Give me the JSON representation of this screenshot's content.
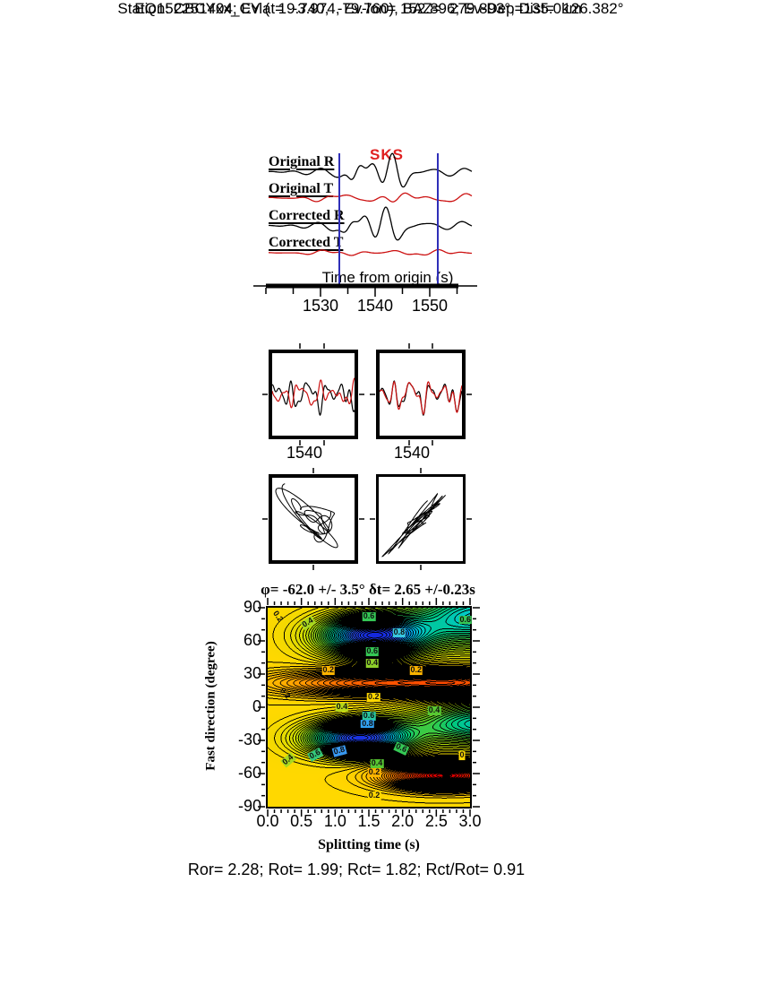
{
  "header": {
    "line1": "Station: CBCYxx_CY (  19.740,  -79.760), BAZ=  279.893°, Dist=  126.382°",
    "line2": "EQ152251404; Evlat=  -3.974, Ev-lon= 152.896; Ev-Dep=135.0km"
  },
  "waveform_panel": {
    "phase_label": "SKS",
    "axis_label": "Time from origin (s)",
    "tick_labels": [
      "1530",
      "1540",
      "1550"
    ],
    "traces": [
      {
        "label": "Original R",
        "color": "#000000"
      },
      {
        "label": "Original T",
        "color": "#cc1111"
      },
      {
        "label": "Corrected R",
        "color": "#000000"
      },
      {
        "label": "Corrected T",
        "color": "#cc1111"
      }
    ],
    "window_marker_color": "#2f2fb8"
  },
  "pair_panels": {
    "left_label": "1540",
    "right_label": "1540"
  },
  "footer": "Ror= 2.28; Rot= 1.99; Rct= 1.82; Rct/Rot= 0.91",
  "chart_data": [
    {
      "type": "line",
      "panel": "radial-transverse-waveforms",
      "xlabel": "Time from origin (s)",
      "xticks": [
        1530,
        1540,
        1550
      ],
      "phase_pick": "SKS",
      "selection_window_s": [
        1533.5,
        1551.5
      ],
      "series": [
        {
          "name": "Original R",
          "color": "#000000"
        },
        {
          "name": "Original T",
          "color": "#cc1111"
        },
        {
          "name": "Corrected R",
          "color": "#000000"
        },
        {
          "name": "Corrected T",
          "color": "#cc1111"
        }
      ]
    },
    {
      "type": "line",
      "panel": "fast-slow-overlay",
      "panels": [
        {
          "xtick_label": "1540",
          "series": [
            "fast component (black)",
            "slow component (red)"
          ]
        },
        {
          "xtick_label": "1540",
          "series": [
            "corrected fast (black)",
            "corrected slow (red)"
          ]
        }
      ]
    },
    {
      "type": "line",
      "panel": "particle-motion-hodograms",
      "panels": [
        "original (elliptical motion)",
        "corrected (linearized motion)"
      ]
    },
    {
      "type": "heatmap",
      "panel": "splitting-parameter-map",
      "title": "φ= -62.0 +/- 3.5° δt= 2.65 +/-0.23s",
      "xlabel": "Splitting time (s)",
      "ylabel": "Fast direction (degree)",
      "xlim": [
        0,
        3
      ],
      "ylim": [
        -90,
        90
      ],
      "xticks": [
        0.0,
        0.5,
        1.0,
        1.5,
        2.0,
        2.5,
        3.0
      ],
      "yticks": [
        90,
        60,
        30,
        0,
        -30,
        -60,
        -90
      ],
      "best_fit": {
        "fast_direction_deg": -62.0,
        "fast_direction_err_deg": 3.5,
        "split_time_s": 2.65,
        "split_time_err_s": 0.23
      },
      "star_marker": {
        "x": 2.65,
        "y": -62
      },
      "contour_interval": 0.025,
      "labeled_levels": [
        0,
        0.2,
        0.4,
        0.6,
        0.8
      ],
      "contour_labels": [
        {
          "text": "0.2",
          "x": 0.14,
          "y": 82,
          "rot": 55,
          "bg": null
        },
        {
          "text": "0.4",
          "x": 0.6,
          "y": 76,
          "rot": -32,
          "bg": "#a8d820"
        },
        {
          "text": "0.6",
          "x": 1.5,
          "y": 82,
          "rot": 0,
          "bg": "#35c855"
        },
        {
          "text": "0.8",
          "x": 1.95,
          "y": 67,
          "rot": 0,
          "bg": "#38c8e0"
        },
        {
          "text": "0.6",
          "x": 2.93,
          "y": 79,
          "rot": 0,
          "bg": "#35c855"
        },
        {
          "text": "0.6",
          "x": 1.55,
          "y": 50,
          "rot": 0,
          "bg": "#35c855"
        },
        {
          "text": "0.4",
          "x": 1.55,
          "y": 40,
          "rot": 0,
          "bg": "#8ed02a"
        },
        {
          "text": "0.2",
          "x": 0.9,
          "y": 33,
          "rot": 0,
          "bg": "#ffb400"
        },
        {
          "text": "0.2",
          "x": 2.2,
          "y": 33,
          "rot": 0,
          "bg": "#ffb400"
        },
        {
          "text": "0.2",
          "x": 0.25,
          "y": 12,
          "rot": 50,
          "bg": null
        },
        {
          "text": "0.2",
          "x": 1.57,
          "y": 9,
          "rot": 0,
          "bg": "#ffd800"
        },
        {
          "text": "0.4",
          "x": 1.1,
          "y": 0,
          "rot": 0,
          "bg": "#b8d818"
        },
        {
          "text": "0.4",
          "x": 2.47,
          "y": -3,
          "rot": 0,
          "bg": "#58c832"
        },
        {
          "text": "0.6",
          "x": 1.5,
          "y": -8,
          "rot": 0,
          "bg": "#28c8a0"
        },
        {
          "text": "0.8",
          "x": 1.48,
          "y": -15,
          "rot": 0,
          "bg": "#30a0f0"
        },
        {
          "text": "0.4",
          "x": 0.3,
          "y": -48,
          "rot": -40,
          "bg": "#a8d820"
        },
        {
          "text": "0.6",
          "x": 0.7,
          "y": -43,
          "rot": -28,
          "bg": "#35c87a"
        },
        {
          "text": "0.8",
          "x": 1.06,
          "y": -40,
          "rot": -15,
          "bg": "#3898f0"
        },
        {
          "text": "0.6",
          "x": 1.98,
          "y": -37,
          "rot": 25,
          "bg": "#35c855"
        },
        {
          "text": "0",
          "x": 2.88,
          "y": -44,
          "rot": 0,
          "bg": "#ffd800"
        },
        {
          "text": "0.4",
          "x": 1.62,
          "y": -51,
          "rot": 0,
          "bg": "#58c832"
        },
        {
          "text": "0.2",
          "x": 1.58,
          "y": -59,
          "rot": 0,
          "bg": "#ffb400"
        },
        {
          "text": "0.2",
          "x": 1.58,
          "y": -80,
          "rot": 0,
          "bg": "#ffd800"
        }
      ],
      "field_model_estimate": {
        "background": 0.08,
        "peaks": [
          {
            "x": 1.55,
            "y": 65,
            "amp": 0.95,
            "sx": 0.75,
            "sy": 18
          },
          {
            "x": 1.35,
            "y": -28,
            "amp": 0.92,
            "sx": 0.72,
            "sy": 15
          },
          {
            "x": 3.1,
            "y": 82,
            "amp": 0.6,
            "sx": 1.0,
            "sy": 28
          },
          {
            "x": 3.2,
            "y": -15,
            "amp": 0.55,
            "sx": 1.1,
            "sy": 20
          },
          {
            "x": 1.7,
            "y": 22,
            "amp": -0.5,
            "sx": 1.5,
            "sy": 11
          },
          {
            "x": 3.0,
            "y": 22,
            "amp": -0.3,
            "sx": 0.8,
            "sy": 11
          },
          {
            "x": 2.62,
            "y": -62,
            "amp": -0.9,
            "sx": 0.8,
            "sy": 11
          }
        ]
      },
      "colormap_stops": [
        [
          -1.0,
          "#b00000"
        ],
        [
          -0.78,
          "#dc0000"
        ],
        [
          -0.55,
          "#ff3800"
        ],
        [
          -0.3,
          "#ff7800"
        ],
        [
          -0.1,
          "#ffb000"
        ],
        [
          0.08,
          "#ffd800"
        ],
        [
          0.24,
          "#ccdc00"
        ],
        [
          0.4,
          "#66cc1e"
        ],
        [
          0.55,
          "#00c878"
        ],
        [
          0.67,
          "#00c8c8"
        ],
        [
          0.79,
          "#00a0f0"
        ],
        [
          0.9,
          "#2850f0"
        ],
        [
          1.06,
          "#1428dc"
        ]
      ]
    }
  ]
}
